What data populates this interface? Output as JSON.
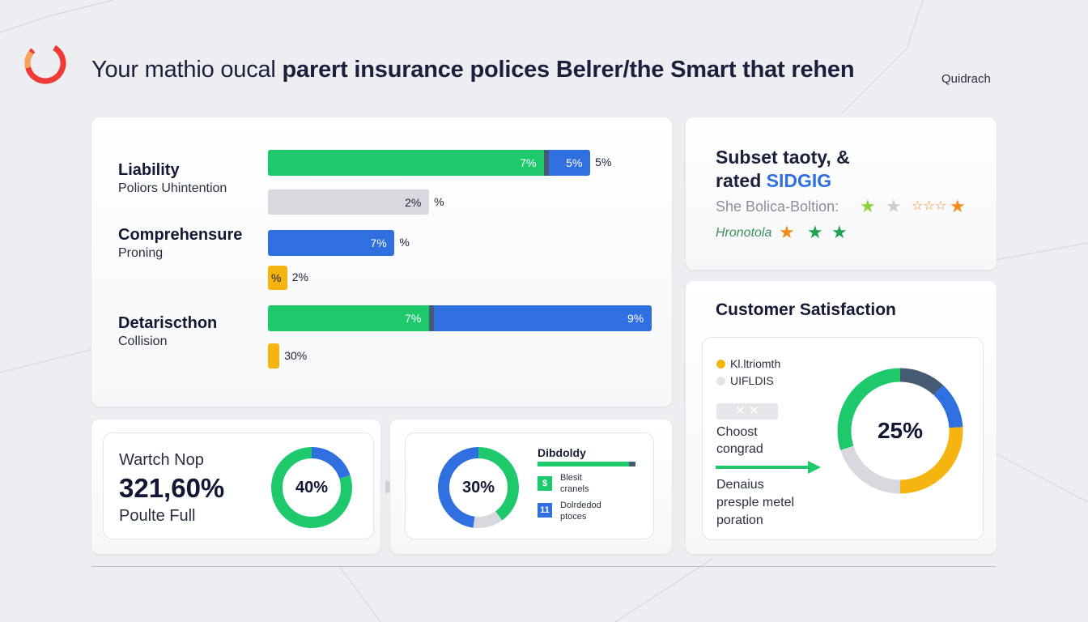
{
  "header": {
    "title_regular": "Your mathio oucal",
    "title_bold": "parert insurance polices Belrer/the Smart that rehen",
    "brand": "Quidrach"
  },
  "coverage_card": {
    "rows": [
      {
        "main": "Liability",
        "sub": "Poliors Uhintention"
      },
      {
        "main": "Comprehensure",
        "sub": "Proning"
      },
      {
        "main": "Detariscthon",
        "sub": "Collision"
      }
    ]
  },
  "ratings_card": {
    "title_line1": "Subset taoty, &",
    "title_line2_prefix": "rated",
    "title_line2_brand": "SIDGIG",
    "line1_text": "She Bolica-Boltion:",
    "line2_text": "Hronotola",
    "stars_line1": [
      "green",
      "gray",
      "orange-outline",
      "orange"
    ],
    "stars_line2": [
      "orange",
      "green",
      "green"
    ]
  },
  "satisfaction_card": {
    "title": "Customer Satisfaction",
    "legend": [
      "Kl.ltriomth",
      "UIFLDIS"
    ],
    "placeholder": "✕ ✕",
    "choost": "Choost",
    "congrad": "congrad",
    "desc1": "Denaius",
    "desc2": "presple metel",
    "desc3": "poration"
  },
  "watch_card": {
    "title": "Wartch Nop",
    "value": "321,60%",
    "subtitle": "Poulte Full"
  },
  "dibdoldy_card": {
    "title": "Dibdoldy",
    "item1_icon": "$",
    "item1_line1": "Blesit",
    "item1_line2": "cranels",
    "item2_icon": "11",
    "item2_line1": "Dolrdedod",
    "item2_line2": "ptoces"
  },
  "colors": {
    "green": "#1ec96c",
    "blue": "#2f6fe0",
    "gray": "#d7d9de",
    "yellow": "#f5b40f",
    "slate": "#455a73",
    "orange": "#f28c1c",
    "logo_red": "#ef3b36"
  },
  "chart_data": [
    {
      "type": "bar",
      "orientation": "horizontal",
      "stacked": true,
      "bars": [
        {
          "row": "Liability",
          "segments": [
            {
              "color": "green",
              "value": 72,
              "label": "7%"
            },
            {
              "color": "slate",
              "value": 1.2,
              "label": ""
            },
            {
              "color": "blue",
              "value": 10.8,
              "label": "5%"
            }
          ],
          "tail": "5%"
        },
        {
          "row": "Liability",
          "segments": [
            {
              "color": "gray",
              "value": 42,
              "label": "2%"
            }
          ],
          "tail": "%"
        },
        {
          "row": "Comprehensure",
          "segments": [
            {
              "color": "blue",
              "value": 33,
              "label": "7%"
            }
          ],
          "tail": "%"
        },
        {
          "row": "Comprehensure",
          "segments": [
            {
              "color": "yellow",
              "value": 5,
              "label": "%"
            }
          ],
          "tail": "2%"
        },
        {
          "row": "Detariscthon",
          "segments": [
            {
              "color": "green",
              "value": 42,
              "label": "7%"
            },
            {
              "color": "slate",
              "value": 1.2,
              "label": ""
            },
            {
              "color": "blue",
              "value": 56.8,
              "label": "9%"
            }
          ],
          "tail": ""
        },
        {
          "row": "Detariscthon",
          "segments": [
            {
              "color": "yellow",
              "value": 3,
              "label": ""
            }
          ],
          "tail": "30%"
        }
      ],
      "xlim": [
        0,
        100
      ]
    },
    {
      "type": "pie",
      "donut": true,
      "center_label": "40%",
      "slices": [
        {
          "color": "blue",
          "value": 20
        },
        {
          "color": "green",
          "value": 80
        }
      ]
    },
    {
      "type": "pie",
      "donut": true,
      "center_label": "30%",
      "slices": [
        {
          "color": "green",
          "value": 40
        },
        {
          "color": "gray",
          "value": 12
        },
        {
          "color": "blue",
          "value": 48
        }
      ]
    },
    {
      "type": "pie",
      "donut": true,
      "center_label": "25%",
      "slices": [
        {
          "color": "slate",
          "value": 12
        },
        {
          "color": "blue",
          "value": 12
        },
        {
          "color": "yellow",
          "value": 26
        },
        {
          "color": "gray",
          "value": 20
        },
        {
          "color": "green",
          "value": 30
        }
      ]
    }
  ]
}
